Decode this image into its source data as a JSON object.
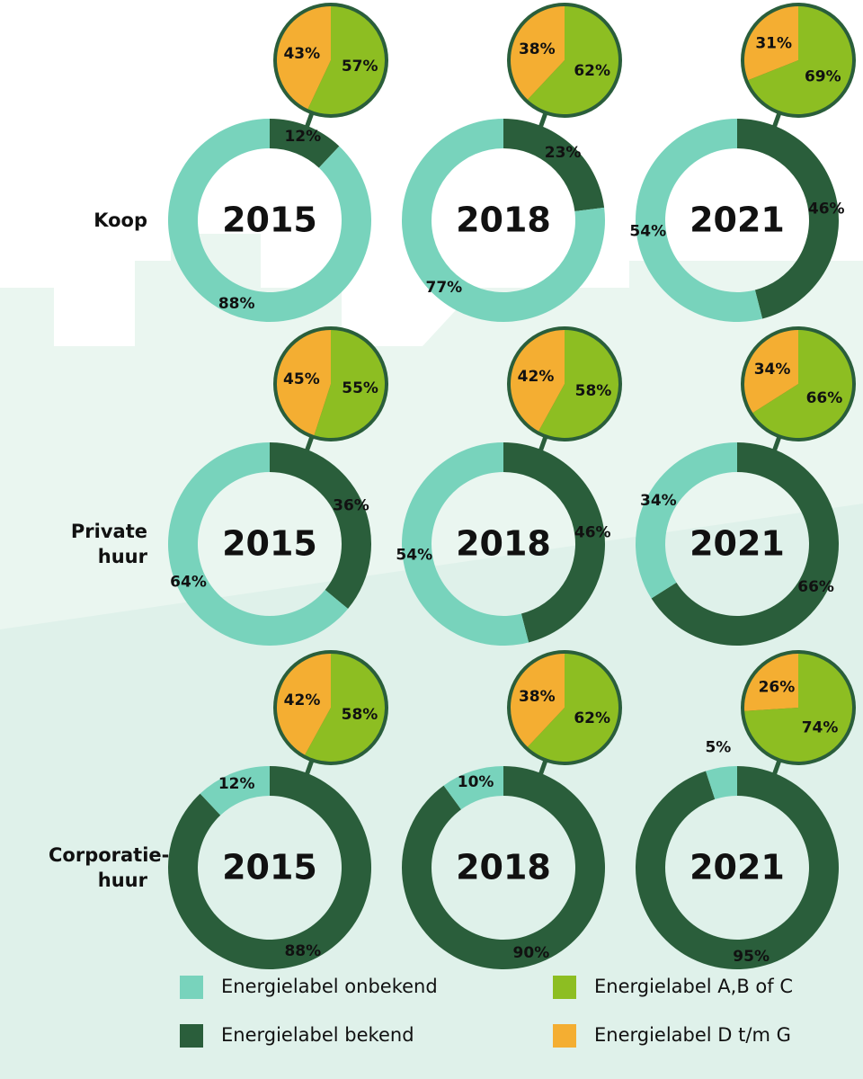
{
  "row_labels": [
    "Koop",
    "Private huur",
    "Corporatie-huur"
  ],
  "legend": [
    {
      "name": "Energielabel onbekend",
      "color": "#78d3bc"
    },
    {
      "name": "Energielabel bekend",
      "color": "#2a5e3b"
    },
    {
      "name": "Energielabel A,B of C",
      "color": "#8dbe22"
    },
    {
      "name": "Energielabel D t/m G",
      "color": "#f4ae32"
    }
  ],
  "chart_data": [
    {
      "type": "donut",
      "title": "2015",
      "values": [
        12,
        88
      ],
      "value_labels": [
        "12%",
        "88%"
      ],
      "inset": {
        "type": "pie",
        "values": [
          57,
          43
        ],
        "value_labels": [
          "57%",
          "43%"
        ]
      }
    },
    {
      "type": "donut",
      "title": "2018",
      "values": [
        23,
        77
      ],
      "value_labels": [
        "23%",
        "77%"
      ],
      "inset": {
        "type": "pie",
        "values": [
          62,
          38
        ],
        "value_labels": [
          "62%",
          "38%"
        ]
      }
    },
    {
      "type": "donut",
      "title": "2021",
      "values": [
        46,
        54
      ],
      "value_labels": [
        "46%",
        "54%"
      ],
      "inset": {
        "type": "pie",
        "values": [
          69,
          31
        ],
        "value_labels": [
          "69%",
          "31%"
        ]
      }
    },
    {
      "type": "donut",
      "title": "2015",
      "values": [
        36,
        64
      ],
      "value_labels": [
        "36%",
        "64%"
      ],
      "inset": {
        "type": "pie",
        "values": [
          55,
          45
        ],
        "value_labels": [
          "55%",
          "45%"
        ]
      }
    },
    {
      "type": "donut",
      "title": "2018",
      "values": [
        46,
        54
      ],
      "value_labels": [
        "46%",
        "54%"
      ],
      "inset": {
        "type": "pie",
        "values": [
          58,
          42
        ],
        "value_labels": [
          "58%",
          "42%"
        ]
      }
    },
    {
      "type": "donut",
      "title": "2021",
      "values": [
        66,
        34
      ],
      "value_labels": [
        "66%",
        "34%"
      ],
      "inset": {
        "type": "pie",
        "values": [
          66,
          34
        ],
        "value_labels": [
          "66%",
          "34%"
        ]
      }
    },
    {
      "type": "donut",
      "title": "2015",
      "values": [
        88,
        12
      ],
      "value_labels": [
        "88%",
        "12%"
      ],
      "inset": {
        "type": "pie",
        "values": [
          58,
          42
        ],
        "value_labels": [
          "58%",
          "42%"
        ]
      }
    },
    {
      "type": "donut",
      "title": "2018",
      "values": [
        90,
        10
      ],
      "value_labels": [
        "90%",
        "10%"
      ],
      "inset": {
        "type": "pie",
        "values": [
          62,
          38
        ],
        "value_labels": [
          "62%",
          "38%"
        ]
      }
    },
    {
      "type": "donut",
      "title": "2021",
      "values": [
        95,
        5
      ],
      "value_labels": [
        "95%",
        "5%"
      ],
      "inset": {
        "type": "pie",
        "values": [
          74,
          26
        ],
        "value_labels": [
          "74%",
          "26%"
        ]
      }
    }
  ]
}
